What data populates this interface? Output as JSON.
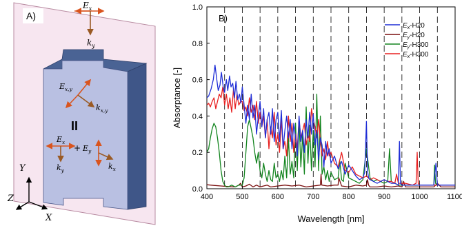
{
  "panel_a": {
    "label": "A)",
    "field_top": {
      "e": "E",
      "e_sub": "x",
      "k": "k",
      "k_sub": "y"
    },
    "field_mid": {
      "e": "E",
      "e_sub": "x,y",
      "k": "k",
      "k_sub": "x,y"
    },
    "parallel_symbol": "II",
    "field_bottom": {
      "e1": "E",
      "e1_sub": "x",
      "plus": "+",
      "e2": "E",
      "e2_sub": "y",
      "k1": "k",
      "k1_sub": "y",
      "k2": "k",
      "k2_sub": "x"
    },
    "axes": {
      "y": "Y",
      "z": "Z",
      "x": "X"
    },
    "colors": {
      "field_arrow": "#d9541e",
      "k_arrow": "#9a5a24",
      "slab_front": "#b9c0e2",
      "slab_top": "#4a6394",
      "slab_side": "#3f5688",
      "plane": "#f7e6f0"
    }
  },
  "chart_data": {
    "type": "line",
    "panel_label": "B)",
    "xlabel": "Wavelength [nm]",
    "ylabel": "Absorptance  [-]",
    "xlim": [
      400,
      1100
    ],
    "ylim": [
      0,
      1.0
    ],
    "xticks": [
      400,
      500,
      600,
      700,
      800,
      900,
      1000,
      1100
    ],
    "yticks": [
      0.0,
      0.2,
      0.4,
      0.6,
      0.8,
      1.0
    ],
    "ytick_labels": [
      "0.0",
      "0.2",
      "0.4",
      "0.6",
      "0.8",
      "1.0"
    ],
    "vlines": [
      400,
      450,
      500,
      550,
      600,
      650,
      700,
      750,
      800,
      850,
      900,
      950,
      1000,
      1050
    ],
    "legend_position": "top-right",
    "series": [
      {
        "name": "Ex-H20",
        "label_main": "E",
        "label_sub": "x",
        "label_rest": "-H20",
        "color": "#1f2ed6",
        "x": [
          400,
          405,
          412,
          418,
          423,
          428,
          432,
          437,
          441,
          446,
          450,
          455,
          459,
          464,
          468,
          473,
          478,
          482,
          487,
          492,
          496,
          500,
          505,
          510,
          515,
          520,
          525,
          530,
          535,
          540,
          545,
          550,
          555,
          560,
          565,
          570,
          575,
          580,
          585,
          590,
          595,
          600,
          605,
          610,
          615,
          620,
          625,
          630,
          635,
          640,
          645,
          650,
          655,
          660,
          665,
          670,
          675,
          680,
          685,
          690,
          695,
          700,
          705,
          710,
          715,
          720,
          725,
          730,
          735,
          740,
          745,
          750,
          760,
          770,
          780,
          790,
          800,
          810,
          820,
          830,
          840,
          845,
          850,
          853,
          856,
          860,
          870,
          880,
          890,
          900,
          910,
          920,
          930,
          940,
          943,
          946,
          950,
          960,
          980,
          1000,
          1020,
          1040,
          1046,
          1050,
          1060,
          1080,
          1100
        ],
        "y": [
          0.5,
          0.51,
          0.55,
          0.6,
          0.68,
          0.6,
          0.54,
          0.57,
          0.64,
          0.56,
          0.53,
          0.6,
          0.54,
          0.62,
          0.56,
          0.58,
          0.5,
          0.59,
          0.49,
          0.52,
          0.47,
          0.56,
          0.46,
          0.36,
          0.46,
          0.38,
          0.52,
          0.39,
          0.46,
          0.3,
          0.4,
          0.48,
          0.34,
          0.44,
          0.28,
          0.38,
          0.42,
          0.3,
          0.44,
          0.26,
          0.38,
          0.42,
          0.26,
          0.43,
          0.22,
          0.32,
          0.4,
          0.28,
          0.38,
          0.22,
          0.36,
          0.28,
          0.18,
          0.4,
          0.26,
          0.32,
          0.2,
          0.38,
          0.28,
          0.42,
          0.3,
          0.41,
          0.24,
          0.32,
          0.16,
          0.28,
          0.24,
          0.12,
          0.26,
          0.18,
          0.22,
          0.14,
          0.18,
          0.11,
          0.15,
          0.08,
          0.13,
          0.1,
          0.07,
          0.05,
          0.06,
          0.09,
          0.37,
          0.1,
          0.06,
          0.05,
          0.04,
          0.03,
          0.04,
          0.05,
          0.04,
          0.03,
          0.03,
          0.02,
          0.26,
          0.03,
          0.02,
          0.02,
          0.02,
          0.02,
          0.02,
          0.02,
          0.14,
          0.02,
          0.02,
          0.02,
          0.02
        ]
      },
      {
        "name": "Ey-H20",
        "label_main": "E",
        "label_sub": "y",
        "label_rest": "-H20",
        "color": "#7a0e0e",
        "x": [
          400,
          420,
          440,
          460,
          480,
          490,
          495,
          500,
          510,
          520,
          530,
          540,
          550,
          560,
          570,
          580,
          600,
          620,
          640,
          660,
          680,
          700,
          720,
          722,
          724,
          740,
          760,
          770,
          772,
          780,
          800,
          820,
          840,
          850,
          853,
          856,
          860,
          880,
          900,
          920,
          940,
          950,
          955,
          960,
          980,
          1000,
          1020,
          1040,
          1050,
          1060,
          1080,
          1100
        ],
        "y": [
          0.022,
          0.018,
          0.015,
          0.012,
          0.01,
          0.02,
          0.03,
          0.01,
          0.015,
          0.025,
          0.01,
          0.02,
          0.01,
          0.015,
          0.02,
          0.01,
          0.015,
          0.02,
          0.015,
          0.02,
          0.01,
          0.015,
          0.02,
          0.08,
          0.02,
          0.015,
          0.02,
          0.02,
          0.06,
          0.015,
          0.01,
          0.02,
          0.015,
          0.02,
          0.05,
          0.02,
          0.01,
          0.01,
          0.015,
          0.01,
          0.015,
          0.01,
          0.04,
          0.01,
          0.01,
          0.01,
          0.01,
          0.01,
          0.03,
          0.01,
          0.01,
          0.01
        ]
      },
      {
        "name": "Ey-H300",
        "label_main": "E",
        "label_sub": "y",
        "label_rest": "-H300",
        "color": "#12841e",
        "x": [
          400,
          405,
          410,
          415,
          420,
          425,
          430,
          435,
          440,
          445,
          450,
          455,
          460,
          470,
          480,
          490,
          500,
          505,
          510,
          515,
          520,
          525,
          530,
          535,
          540,
          545,
          550,
          555,
          560,
          565,
          570,
          575,
          580,
          585,
          590,
          595,
          600,
          605,
          610,
          615,
          620,
          625,
          630,
          635,
          640,
          645,
          650,
          655,
          660,
          665,
          670,
          675,
          680,
          685,
          690,
          695,
          700,
          705,
          710,
          715,
          720,
          725,
          730,
          735,
          740,
          745,
          750,
          760,
          770,
          775,
          780,
          785,
          790,
          800,
          810,
          820,
          830,
          840,
          850,
          860,
          870,
          880,
          900,
          910,
          915,
          920,
          930,
          940,
          950,
          960,
          980,
          1000,
          1020,
          1040,
          1042,
          1045,
          1050,
          1060,
          1080,
          1100
        ],
        "y": [
          0.2,
          0.22,
          0.28,
          0.33,
          0.36,
          0.34,
          0.28,
          0.2,
          0.1,
          0.04,
          0.02,
          0.01,
          0.01,
          0.02,
          0.01,
          0.02,
          0.02,
          0.06,
          0.2,
          0.34,
          0.38,
          0.33,
          0.28,
          0.2,
          0.14,
          0.2,
          0.1,
          0.06,
          0.14,
          0.08,
          0.04,
          0.1,
          0.05,
          0.04,
          0.14,
          0.06,
          0.08,
          0.04,
          0.1,
          0.05,
          0.18,
          0.06,
          0.28,
          0.08,
          0.15,
          0.06,
          0.36,
          0.1,
          0.38,
          0.12,
          0.3,
          0.08,
          0.45,
          0.14,
          0.35,
          0.1,
          0.32,
          0.12,
          0.52,
          0.1,
          0.4,
          0.08,
          0.12,
          0.05,
          0.1,
          0.04,
          0.09,
          0.05,
          0.06,
          0.15,
          0.05,
          0.04,
          0.14,
          0.06,
          0.05,
          0.04,
          0.03,
          0.05,
          0.22,
          0.06,
          0.04,
          0.05,
          0.03,
          0.04,
          0.22,
          0.04,
          0.03,
          0.02,
          0.02,
          0.02,
          0.02,
          0.02,
          0.02,
          0.02,
          0.13,
          0.03,
          0.02,
          0.02,
          0.02,
          0.02
        ]
      },
      {
        "name": "Ex-H300",
        "label_main": "E",
        "label_sub": "x",
        "label_rest": "-H300",
        "color": "#e82020",
        "x": [
          400,
          405,
          410,
          415,
          420,
          425,
          430,
          435,
          440,
          445,
          450,
          455,
          460,
          465,
          470,
          475,
          480,
          485,
          490,
          495,
          500,
          505,
          510,
          515,
          520,
          525,
          530,
          535,
          540,
          545,
          550,
          555,
          560,
          565,
          570,
          575,
          580,
          585,
          590,
          595,
          600,
          605,
          610,
          615,
          620,
          625,
          630,
          635,
          640,
          645,
          650,
          655,
          660,
          665,
          670,
          675,
          680,
          685,
          690,
          695,
          700,
          705,
          710,
          715,
          720,
          725,
          730,
          735,
          740,
          745,
          750,
          760,
          770,
          780,
          790,
          800,
          810,
          820,
          830,
          840,
          850,
          860,
          870,
          880,
          890,
          900,
          910,
          920,
          930,
          935,
          940,
          945,
          950,
          960,
          980,
          990,
          993,
          996,
          1000,
          1020,
          1040,
          1060,
          1080,
          1100
        ],
        "y": [
          0.46,
          0.47,
          0.45,
          0.48,
          0.5,
          0.44,
          0.48,
          0.52,
          0.5,
          0.56,
          0.46,
          0.52,
          0.44,
          0.5,
          0.42,
          0.55,
          0.44,
          0.52,
          0.46,
          0.48,
          0.48,
          0.43,
          0.45,
          0.4,
          0.5,
          0.42,
          0.46,
          0.38,
          0.48,
          0.36,
          0.42,
          0.34,
          0.4,
          0.28,
          0.38,
          0.22,
          0.34,
          0.28,
          0.42,
          0.24,
          0.3,
          0.2,
          0.38,
          0.22,
          0.26,
          0.18,
          0.4,
          0.26,
          0.36,
          0.2,
          0.3,
          0.22,
          0.38,
          0.28,
          0.32,
          0.36,
          0.24,
          0.3,
          0.26,
          0.44,
          0.38,
          0.34,
          0.28,
          0.38,
          0.26,
          0.18,
          0.22,
          0.16,
          0.26,
          0.18,
          0.2,
          0.14,
          0.12,
          0.2,
          0.1,
          0.09,
          0.12,
          0.08,
          0.07,
          0.06,
          0.07,
          0.05,
          0.06,
          0.05,
          0.04,
          0.05,
          0.04,
          0.04,
          0.03,
          0.08,
          0.03,
          0.03,
          0.03,
          0.03,
          0.02,
          0.03,
          0.2,
          0.03,
          0.02,
          0.02,
          0.02,
          0.02,
          0.02,
          0.02
        ]
      }
    ]
  }
}
